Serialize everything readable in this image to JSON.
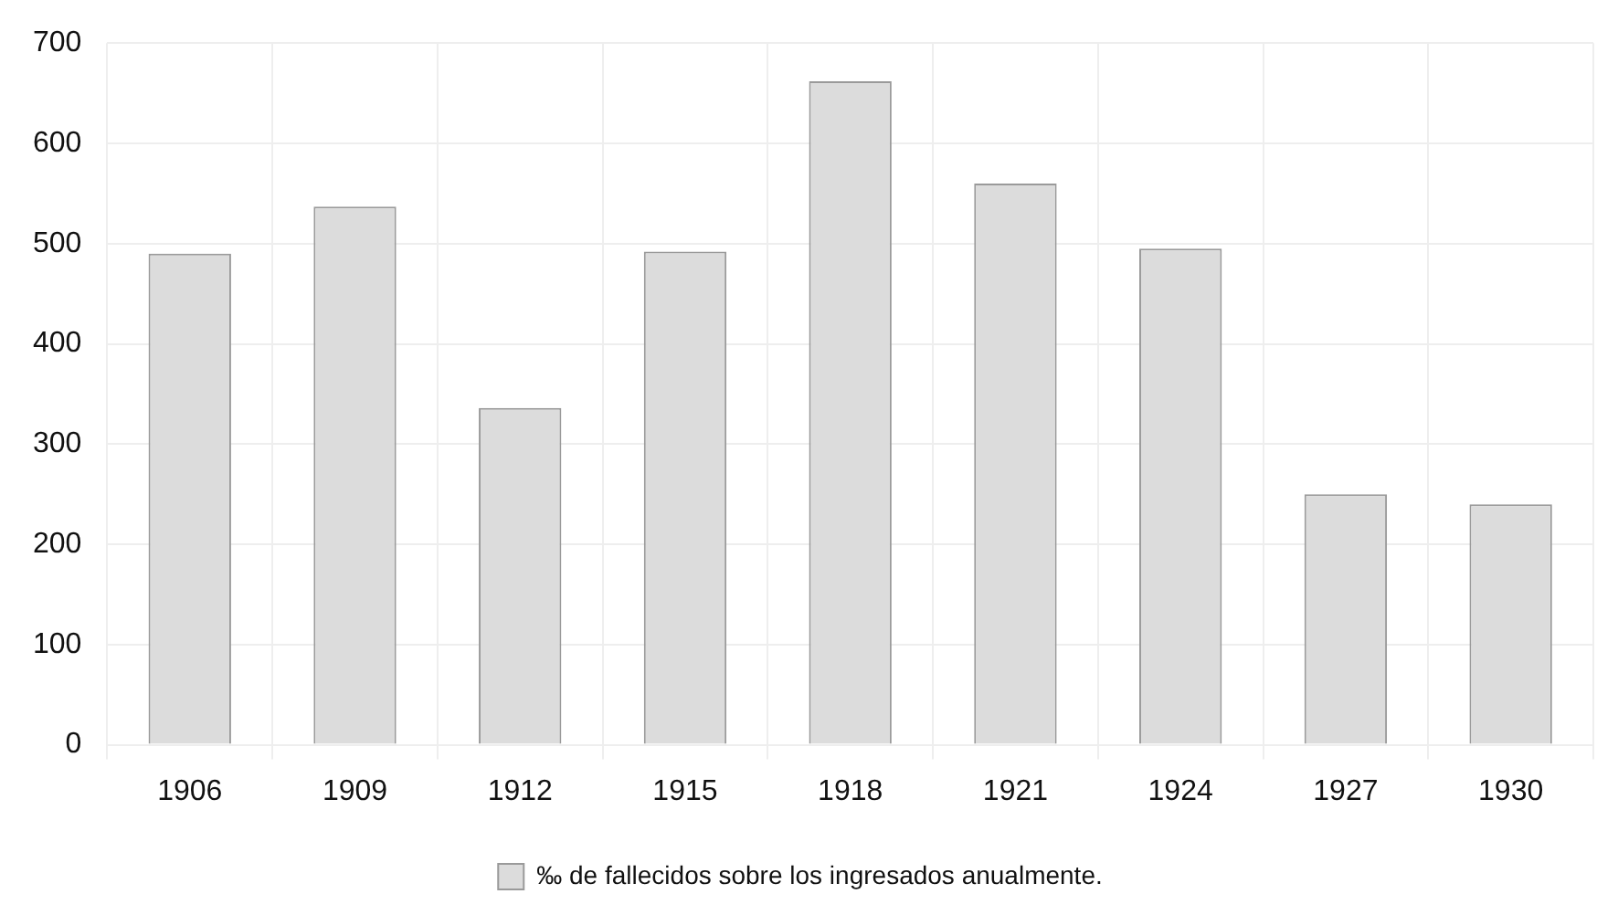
{
  "chart_data": {
    "type": "bar",
    "categories": [
      "1906",
      "1909",
      "1912",
      "1915",
      "1918",
      "1921",
      "1924",
      "1927",
      "1930"
    ],
    "series": [
      {
        "name": "‰ de fallecidos sobre los ingresados anualmente.",
        "color": "#dcdcdc",
        "values": [
          490,
          537,
          336,
          492,
          662,
          560,
          495,
          250,
          240
        ]
      }
    ],
    "ylim": [
      0,
      700
    ],
    "yticks": [
      0,
      100,
      200,
      300,
      400,
      500,
      600,
      700
    ],
    "grid": true,
    "legend": "bottom"
  }
}
